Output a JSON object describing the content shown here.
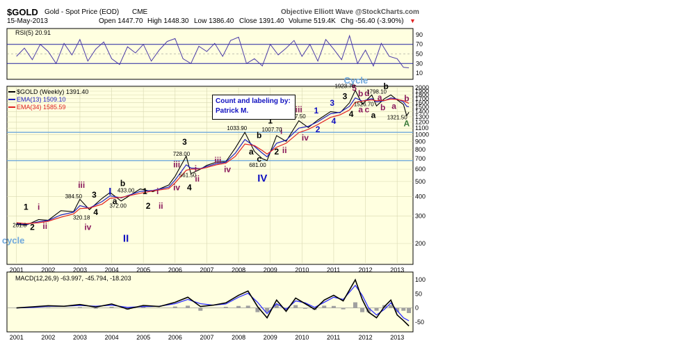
{
  "header": {
    "symbol": "$GOLD",
    "name": "Gold - Spot Price (EOD)",
    "exchange": "CME",
    "source": "Objective Elliott Wave @StockCharts.com",
    "date": "15-May-2013",
    "open": "Open 1447.70",
    "high": "High 1448.30",
    "low": "Low 1386.40",
    "close": "Close 1391.40",
    "volume": "Volume 519.4K",
    "change": "Chg -56.40 (-3.90%)",
    "change_marker": "▼"
  },
  "note_box": {
    "line1": "Count and labeling by:",
    "line2": "Patrick M."
  },
  "colors": {
    "panel_bg": "#ffffe0",
    "price": "#000000",
    "ema13": "#2020c0",
    "ema34": "#e02020",
    "rsi": "#4a3aa8",
    "macd": "#000000",
    "macd_signal": "#3030ff",
    "histogram": "#a0a0a0",
    "blue_label": "#1010c0",
    "purple_label": "#8b1a5c",
    "light_blue": "#6fa8dc",
    "green_label": "#3a7a3a"
  },
  "chart_data": [
    {
      "type": "line",
      "panel": "rsi",
      "title": "RSI(5) 20.91",
      "ylim": [
        0,
        100
      ],
      "y_ticks": [
        10,
        30,
        50,
        70,
        90
      ],
      "reference_lines": [
        30,
        70
      ],
      "x": [
        2001.0,
        2001.25,
        2001.5,
        2001.75,
        2002.0,
        2002.25,
        2002.5,
        2002.75,
        2003.0,
        2003.25,
        2003.5,
        2003.75,
        2004.0,
        2004.25,
        2004.5,
        2004.75,
        2005.0,
        2005.25,
        2005.5,
        2005.75,
        2006.0,
        2006.25,
        2006.5,
        2006.75,
        2007.0,
        2007.25,
        2007.5,
        2007.75,
        2008.0,
        2008.25,
        2008.5,
        2008.75,
        2009.0,
        2009.25,
        2009.5,
        2009.75,
        2010.0,
        2010.25,
        2010.5,
        2010.75,
        2011.0,
        2011.25,
        2011.5,
        2011.75,
        2012.0,
        2012.25,
        2012.5,
        2012.75,
        2013.0,
        2013.2,
        2013.37
      ],
      "values": [
        45,
        62,
        38,
        70,
        55,
        30,
        72,
        48,
        80,
        35,
        60,
        75,
        40,
        28,
        65,
        52,
        70,
        35,
        58,
        76,
        82,
        40,
        30,
        66,
        55,
        72,
        45,
        78,
        85,
        30,
        40,
        25,
        70,
        48,
        62,
        78,
        45,
        70,
        35,
        80,
        60,
        38,
        88,
        30,
        58,
        25,
        72,
        45,
        40,
        22,
        21
      ]
    },
    {
      "type": "line",
      "panel": "price",
      "title": "$GOLD (Weekly) 1391.40",
      "log_scale": true,
      "ylim": [
        150,
        2000
      ],
      "y_ticks": [
        200,
        300,
        400,
        500,
        600,
        700,
        800,
        900,
        1000,
        1100,
        1200,
        1300,
        1400,
        1500,
        1600,
        1700,
        1800,
        1900,
        2000
      ],
      "horizontal_lines": [
        1033.9,
        681
      ],
      "x_ticks": [
        "2001",
        "2002",
        "2003",
        "2004",
        "2005",
        "2006",
        "2007",
        "2008",
        "2009",
        "2010",
        "2011",
        "2012",
        "2013"
      ],
      "x": [
        2001.0,
        2001.3,
        2001.7,
        2002.0,
        2002.4,
        2002.8,
        2003.0,
        2003.3,
        2003.7,
        2003.95,
        2004.3,
        2004.9,
        2005.3,
        2005.8,
        2006.0,
        2006.35,
        2006.5,
        2006.8,
        2007.0,
        2007.3,
        2007.6,
        2007.9,
        2008.2,
        2008.5,
        2008.75,
        2008.9,
        2009.2,
        2009.5,
        2009.9,
        2010.2,
        2010.5,
        2010.9,
        2011.2,
        2011.5,
        2011.68,
        2011.9,
        2012.2,
        2012.35,
        2012.6,
        2012.8,
        2013.0,
        2013.2,
        2013.3,
        2013.37
      ],
      "series": [
        {
          "name": "$GOLD (Weekly) 1391.40",
          "values": [
            265,
            262,
            285,
            282,
            325,
            320,
            384.5,
            330,
            390,
            425,
            375,
            448,
            430,
            475,
            540,
            728,
            561.5,
            600,
            635,
            665,
            670,
            820,
            1033.9,
            780,
            700,
            681,
            985,
            905,
            1227.5,
            1110,
            1240,
            1405,
            1380,
            1600,
            1923.7,
            1565,
            1795,
            1526.7,
            1700,
            1798.1,
            1670,
            1560,
            1321.5,
            1391.4
          ]
        },
        {
          "name": "EMA(13) 1509.10",
          "values": [
            268,
            265,
            276,
            281,
            305,
            318,
            350,
            338,
            372,
            405,
            392,
            432,
            438,
            460,
            510,
            640,
            610,
            605,
            625,
            650,
            665,
            760,
            930,
            840,
            760,
            720,
            880,
            920,
            1100,
            1130,
            1210,
            1360,
            1390,
            1520,
            1720,
            1640,
            1700,
            1620,
            1650,
            1720,
            1690,
            1620,
            1520,
            1509.1
          ]
        },
        {
          "name": "EMA(34) 1585.59",
          "values": [
            272,
            268,
            272,
            278,
            295,
            310,
            335,
            338,
            358,
            390,
            395,
            420,
            435,
            450,
            490,
            590,
            600,
            602,
            615,
            640,
            655,
            725,
            870,
            850,
            790,
            750,
            830,
            880,
            1030,
            1080,
            1160,
            1290,
            1340,
            1440,
            1610,
            1640,
            1670,
            1650,
            1655,
            1690,
            1680,
            1650,
            1610,
            1585.59
          ]
        }
      ],
      "annotations": [
        {
          "text": "1",
          "x": 2001.3,
          "y": 330,
          "color": "#000000"
        },
        {
          "text": "2",
          "x": 2001.5,
          "y": 245,
          "color": "#000000"
        },
        {
          "text": "i",
          "x": 2001.7,
          "y": 330,
          "color": "#8b1a5c"
        },
        {
          "text": "ii",
          "x": 2001.9,
          "y": 248,
          "color": "#8b1a5c"
        },
        {
          "text": "iii",
          "x": 2003.05,
          "y": 455,
          "color": "#8b1a5c"
        },
        {
          "text": "3",
          "x": 2003.45,
          "y": 395,
          "color": "#000000"
        },
        {
          "text": "4",
          "x": 2003.5,
          "y": 305,
          "color": "#000000"
        },
        {
          "text": "iv",
          "x": 2003.25,
          "y": 245,
          "color": "#8b1a5c"
        },
        {
          "text": "b",
          "x": 2004.35,
          "y": 468,
          "color": "#000000"
        },
        {
          "text": "a",
          "x": 2004.1,
          "y": 360,
          "color": "#000000"
        },
        {
          "text": "I",
          "x": 2003.95,
          "y": 410,
          "color": "#1010c0"
        },
        {
          "text": "II",
          "x": 2004.45,
          "y": 205,
          "color": "#1010c0"
        },
        {
          "text": "1",
          "x": 2005.05,
          "y": 415,
          "color": "#000000"
        },
        {
          "text": "i",
          "x": 2005.45,
          "y": 415,
          "color": "#8b1a5c"
        },
        {
          "text": "2",
          "x": 2005.15,
          "y": 335,
          "color": "#000000"
        },
        {
          "text": "ii",
          "x": 2005.55,
          "y": 335,
          "color": "#8b1a5c"
        },
        {
          "text": "3",
          "x": 2006.3,
          "y": 860,
          "color": "#000000"
        },
        {
          "text": "i",
          "x": 2006.65,
          "y": 580,
          "color": "#8b1a5c"
        },
        {
          "text": "iii",
          "x": 2006.05,
          "y": 615,
          "color": "#8b1a5c"
        },
        {
          "text": "iv",
          "x": 2006.05,
          "y": 440,
          "color": "#8b1a5c"
        },
        {
          "text": "ii",
          "x": 2006.7,
          "y": 500,
          "color": "#8b1a5c"
        },
        {
          "text": "4",
          "x": 2006.45,
          "y": 440,
          "color": "#000000"
        },
        {
          "text": "iii",
          "x": 2007.35,
          "y": 655,
          "color": "#8b1a5c"
        },
        {
          "text": "iv",
          "x": 2007.65,
          "y": 575,
          "color": "#8b1a5c"
        },
        {
          "text": "III",
          "x": 2008.2,
          "y": 1270,
          "color": "#1010c0"
        },
        {
          "text": "b",
          "x": 2008.65,
          "y": 950,
          "color": "#000000"
        },
        {
          "text": "a",
          "x": 2008.4,
          "y": 745,
          "color": "#000000"
        },
        {
          "text": "c",
          "x": 2008.65,
          "y": 670,
          "color": "#000000"
        },
        {
          "text": "IV",
          "x": 2008.75,
          "y": 500,
          "color": "#1010c0"
        },
        {
          "text": "1",
          "x": 2009.0,
          "y": 1180,
          "color": "#000000"
        },
        {
          "text": "i",
          "x": 2009.35,
          "y": 1010,
          "color": "#8b1a5c"
        },
        {
          "text": "2",
          "x": 2009.2,
          "y": 745,
          "color": "#000000"
        },
        {
          "text": "ii",
          "x": 2009.45,
          "y": 760,
          "color": "#8b1a5c"
        },
        {
          "text": "iii",
          "x": 2009.9,
          "y": 1390,
          "color": "#8b1a5c"
        },
        {
          "text": "iv",
          "x": 2010.1,
          "y": 915,
          "color": "#8b1a5c"
        },
        {
          "text": "1",
          "x": 2010.45,
          "y": 1370,
          "color": "#1010c0"
        },
        {
          "text": "2",
          "x": 2010.5,
          "y": 1035,
          "color": "#1010c0"
        },
        {
          "text": "3",
          "x": 2010.95,
          "y": 1530,
          "color": "#1010c0"
        },
        {
          "text": "4",
          "x": 2011.0,
          "y": 1170,
          "color": "#1010c0"
        },
        {
          "text": "3",
          "x": 2011.35,
          "y": 1690,
          "color": "#000000"
        },
        {
          "text": "4",
          "x": 2011.55,
          "y": 1300,
          "color": "#000000"
        },
        {
          "text": "5",
          "x": 2011.65,
          "y": 1910,
          "color": "#8b1a5c"
        },
        {
          "text": "Cycle",
          "x": 2011.7,
          "y": 2200,
          "color": "#6fa8dc"
        },
        {
          "text": "b",
          "x": 2011.85,
          "y": 1760,
          "color": "#8b1a5c"
        },
        {
          "text": "d",
          "x": 2012.05,
          "y": 1770,
          "color": "#8b1a5c"
        },
        {
          "text": "a",
          "x": 2011.85,
          "y": 1385,
          "color": "#8b1a5c"
        },
        {
          "text": "c",
          "x": 2012.05,
          "y": 1385,
          "color": "#8b1a5c"
        },
        {
          "text": "a",
          "x": 2012.25,
          "y": 1280,
          "color": "#000000"
        },
        {
          "text": "b",
          "x": 2012.65,
          "y": 1960,
          "color": "#000000"
        },
        {
          "text": "a",
          "x": 2012.45,
          "y": 1660,
          "color": "#8b1a5c"
        },
        {
          "text": "b",
          "x": 2012.55,
          "y": 1430,
          "color": "#8b1a5c"
        },
        {
          "text": "a",
          "x": 2012.9,
          "y": 1460,
          "color": "#8b1a5c"
        },
        {
          "text": "b",
          "x": 2013.3,
          "y": 1640,
          "color": "#8b1a5c"
        },
        {
          "text": "A",
          "x": 2013.3,
          "y": 1130,
          "color": "#3a7a3a"
        },
        {
          "text": "cycle",
          "x": 2000.9,
          "y": 200,
          "color": "#6fa8dc"
        }
      ],
      "data_labels": [
        {
          "text": "261.8",
          "x": 2001.1,
          "y": 255
        },
        {
          "text": "384.50",
          "x": 2002.8,
          "y": 390
        },
        {
          "text": "320.18",
          "x": 2003.05,
          "y": 285
        },
        {
          "text": "433.00",
          "x": 2004.45,
          "y": 425
        },
        {
          "text": "372.00",
          "x": 2004.2,
          "y": 340
        },
        {
          "text": "728.00",
          "x": 2006.2,
          "y": 730
        },
        {
          "text": "561.50",
          "x": 2006.4,
          "y": 535
        },
        {
          "text": "1033.90",
          "x": 2007.95,
          "y": 1070
        },
        {
          "text": "681.00",
          "x": 2008.6,
          "y": 620
        },
        {
          "text": "1007.70",
          "x": 2009.05,
          "y": 1045
        },
        {
          "text": "1227.50",
          "x": 2009.8,
          "y": 1270
        },
        {
          "text": "1923.70",
          "x": 2011.35,
          "y": 1990
        },
        {
          "text": "1798.10",
          "x": 2012.35,
          "y": 1830
        },
        {
          "text": "1526.70",
          "x": 2011.95,
          "y": 1520
        },
        {
          "text": "1321.50",
          "x": 2013.0,
          "y": 1250
        }
      ]
    },
    {
      "type": "line",
      "panel": "macd",
      "title": "MACD(12,26,9) -63.997, -45.794, -18.203",
      "ylim": [
        -80,
        120
      ],
      "y_ticks": [
        -50,
        0,
        50,
        100
      ],
      "x_ticks": [
        "2001",
        "2002",
        "2003",
        "2004",
        "2005",
        "2006",
        "2007",
        "2008",
        "2009",
        "2010",
        "2011",
        "2012",
        "2013"
      ],
      "x": [
        2001.0,
        2001.5,
        2002.0,
        2002.5,
        2003.0,
        2003.5,
        2004.0,
        2004.5,
        2005.0,
        2005.5,
        2006.0,
        2006.4,
        2006.8,
        2007.2,
        2007.6,
        2008.0,
        2008.3,
        2008.6,
        2008.9,
        2009.2,
        2009.5,
        2009.8,
        2010.1,
        2010.4,
        2010.7,
        2011.0,
        2011.3,
        2011.68,
        2011.9,
        2012.1,
        2012.35,
        2012.6,
        2012.8,
        2013.0,
        2013.2,
        2013.37
      ],
      "series": [
        {
          "name": "MACD",
          "values": [
            0,
            4,
            8,
            6,
            12,
            3,
            14,
            -4,
            9,
            5,
            20,
            38,
            5,
            10,
            18,
            45,
            60,
            5,
            -35,
            28,
            -12,
            35,
            15,
            -5,
            28,
            45,
            25,
            100,
            30,
            -15,
            -35,
            5,
            28,
            -25,
            -45,
            -64
          ]
        },
        {
          "name": "Signal",
          "values": [
            0,
            2,
            6,
            6,
            9,
            6,
            10,
            2,
            5,
            6,
            15,
            30,
            15,
            10,
            14,
            38,
            52,
            20,
            -20,
            15,
            -5,
            25,
            18,
            2,
            20,
            38,
            30,
            80,
            45,
            0,
            -25,
            -5,
            18,
            -10,
            -35,
            -45.8
          ]
        },
        {
          "name": "Histogram",
          "values": [
            0,
            2,
            2,
            0,
            3,
            -3,
            4,
            -6,
            4,
            -1,
            5,
            8,
            -10,
            0,
            4,
            7,
            8,
            -15,
            -15,
            13,
            -7,
            10,
            -3,
            -7,
            8,
            7,
            -5,
            20,
            -15,
            -15,
            -10,
            10,
            10,
            -15,
            -10,
            -18.2
          ]
        }
      ]
    }
  ]
}
